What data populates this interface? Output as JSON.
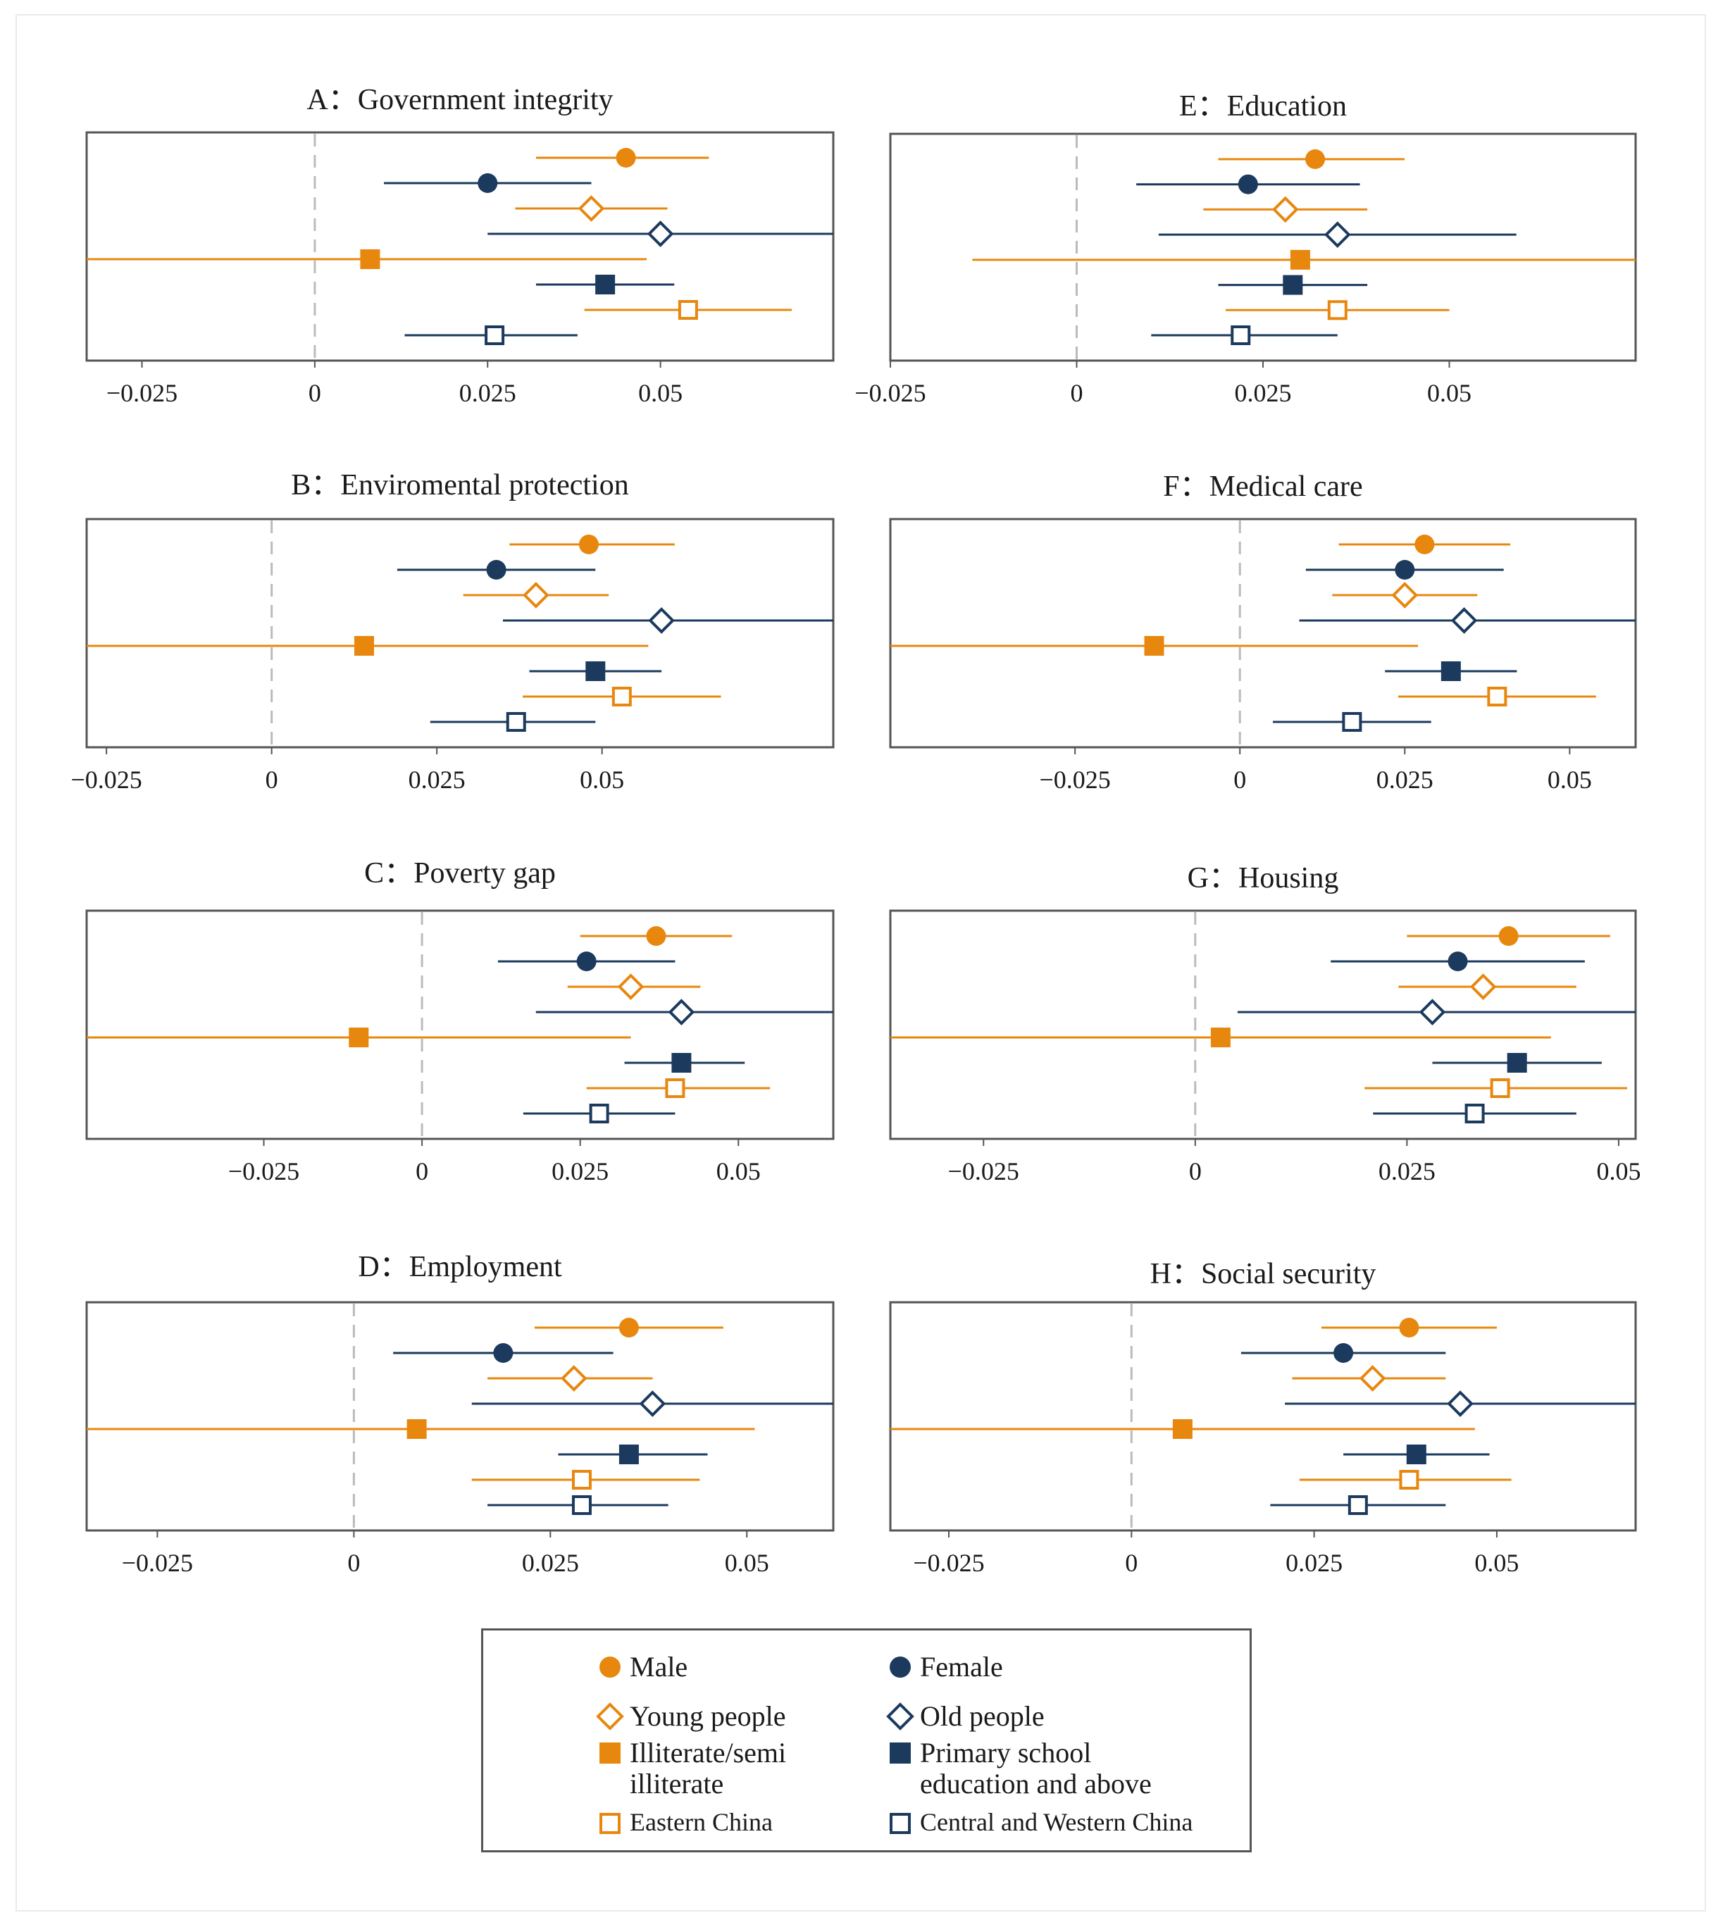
{
  "colors": {
    "orange": "#E8870E",
    "navy": "#1B3A5E",
    "gray": "#BBBBBB",
    "frame": "#555555"
  },
  "legend": {
    "items": [
      {
        "label": "Male",
        "marker": "circle-filled",
        "color": "#E8870E"
      },
      {
        "label": "Female",
        "marker": "circle-filled",
        "color": "#1B3A5E"
      },
      {
        "label": "Young people",
        "marker": "diamond-hollow",
        "color": "#E8870E"
      },
      {
        "label": "Old people",
        "marker": "diamond-hollow",
        "color": "#1B3A5E"
      },
      {
        "label": "Illiterate/semi\nilliterate",
        "marker": "square-filled",
        "color": "#E8870E"
      },
      {
        "label": "Primary school\neducation and above",
        "marker": "square-filled",
        "color": "#1B3A5E"
      },
      {
        "label": "Eastern China",
        "marker": "square-hollow",
        "color": "#E8870E"
      },
      {
        "label": "Central and Western China",
        "marker": "square-hollow",
        "color": "#1B3A5E"
      }
    ]
  },
  "chart_data": [
    {
      "type": "coefficient-plot",
      "title": "A：Government integrity",
      "xlim": [
        -0.033,
        0.075
      ],
      "ticks": [
        -0.025,
        0,
        0.025,
        0.05
      ],
      "tick_labels": [
        "−0.025",
        "0",
        "0.025",
        "0.05"
      ],
      "series": [
        {
          "name": "Male",
          "estimate": 0.045,
          "ci": [
            0.032,
            0.057
          ]
        },
        {
          "name": "Female",
          "estimate": 0.025,
          "ci": [
            0.01,
            0.04
          ]
        },
        {
          "name": "Young people",
          "estimate": 0.04,
          "ci": [
            0.029,
            0.051
          ]
        },
        {
          "name": "Old people",
          "estimate": 0.05,
          "ci": [
            0.025,
            0.075
          ]
        },
        {
          "name": "Illiterate/semi illiterate",
          "estimate": 0.008,
          "ci": [
            -0.033,
            0.048
          ]
        },
        {
          "name": "Primary school education and above",
          "estimate": 0.042,
          "ci": [
            0.032,
            0.052
          ]
        },
        {
          "name": "Eastern China",
          "estimate": 0.054,
          "ci": [
            0.039,
            0.069
          ]
        },
        {
          "name": "Central and Western China",
          "estimate": 0.026,
          "ci": [
            0.013,
            0.038
          ]
        }
      ]
    },
    {
      "type": "coefficient-plot",
      "title": "B：Enviromental protection",
      "xlim": [
        -0.028,
        0.085
      ],
      "ticks": [
        -0.025,
        0,
        0.025,
        0.05
      ],
      "tick_labels": [
        "−0.025",
        "0",
        "0.025",
        "0.05"
      ],
      "series": [
        {
          "name": "Male",
          "estimate": 0.048,
          "ci": [
            0.036,
            0.061
          ]
        },
        {
          "name": "Female",
          "estimate": 0.034,
          "ci": [
            0.019,
            0.049
          ]
        },
        {
          "name": "Young people",
          "estimate": 0.04,
          "ci": [
            0.029,
            0.051
          ]
        },
        {
          "name": "Old people",
          "estimate": 0.059,
          "ci": [
            0.035,
            0.085
          ]
        },
        {
          "name": "Illiterate/semi illiterate",
          "estimate": 0.014,
          "ci": [
            -0.028,
            0.057
          ]
        },
        {
          "name": "Primary school education and above",
          "estimate": 0.049,
          "ci": [
            0.039,
            0.059
          ]
        },
        {
          "name": "Eastern China",
          "estimate": 0.053,
          "ci": [
            0.038,
            0.068
          ]
        },
        {
          "name": "Central and Western China",
          "estimate": 0.037,
          "ci": [
            0.024,
            0.049
          ]
        }
      ]
    },
    {
      "type": "coefficient-plot",
      "title": "C：Poverty gap",
      "xlim": [
        -0.053,
        0.065
      ],
      "ticks": [
        -0.025,
        0,
        0.025,
        0.05
      ],
      "tick_labels": [
        "−0.025",
        "0",
        "0.025",
        "0.05"
      ],
      "series": [
        {
          "name": "Male",
          "estimate": 0.037,
          "ci": [
            0.025,
            0.049
          ]
        },
        {
          "name": "Female",
          "estimate": 0.026,
          "ci": [
            0.012,
            0.04
          ]
        },
        {
          "name": "Young people",
          "estimate": 0.033,
          "ci": [
            0.023,
            0.044
          ]
        },
        {
          "name": "Old people",
          "estimate": 0.041,
          "ci": [
            0.018,
            0.065
          ]
        },
        {
          "name": "Illiterate/semi illiterate",
          "estimate": -0.01,
          "ci": [
            -0.053,
            0.033
          ]
        },
        {
          "name": "Primary school education and above",
          "estimate": 0.041,
          "ci": [
            0.032,
            0.051
          ]
        },
        {
          "name": "Eastern China",
          "estimate": 0.04,
          "ci": [
            0.026,
            0.055
          ]
        },
        {
          "name": "Central and Western China",
          "estimate": 0.028,
          "ci": [
            0.016,
            0.04
          ]
        }
      ]
    },
    {
      "type": "coefficient-plot",
      "title": "D：Employment",
      "xlim": [
        -0.034,
        0.061
      ],
      "ticks": [
        -0.025,
        0,
        0.025,
        0.05
      ],
      "tick_labels": [
        "−0.025",
        "0",
        "0.025",
        "0.05"
      ],
      "series": [
        {
          "name": "Male",
          "estimate": 0.035,
          "ci": [
            0.023,
            0.047
          ]
        },
        {
          "name": "Female",
          "estimate": 0.019,
          "ci": [
            0.005,
            0.033
          ]
        },
        {
          "name": "Young people",
          "estimate": 0.028,
          "ci": [
            0.017,
            0.038
          ]
        },
        {
          "name": "Old people",
          "estimate": 0.038,
          "ci": [
            0.015,
            0.061
          ]
        },
        {
          "name": "Illiterate/semi illiterate",
          "estimate": 0.008,
          "ci": [
            -0.034,
            0.051
          ]
        },
        {
          "name": "Primary school education and above",
          "estimate": 0.035,
          "ci": [
            0.026,
            0.045
          ]
        },
        {
          "name": "Eastern China",
          "estimate": 0.029,
          "ci": [
            0.015,
            0.044
          ]
        },
        {
          "name": "Central and Western China",
          "estimate": 0.029,
          "ci": [
            0.017,
            0.04
          ]
        }
      ]
    },
    {
      "type": "coefficient-plot",
      "title": "E：Education",
      "xlim": [
        -0.025,
        0.075
      ],
      "ticks": [
        -0.025,
        0,
        0.025,
        0.05
      ],
      "tick_labels": [
        "−0.025",
        "0",
        "0.025",
        "0.05"
      ],
      "series": [
        {
          "name": "Male",
          "estimate": 0.032,
          "ci": [
            0.019,
            0.044
          ]
        },
        {
          "name": "Female",
          "estimate": 0.023,
          "ci": [
            0.008,
            0.038
          ]
        },
        {
          "name": "Young people",
          "estimate": 0.028,
          "ci": [
            0.017,
            0.039
          ]
        },
        {
          "name": "Old people",
          "estimate": 0.035,
          "ci": [
            0.011,
            0.059
          ]
        },
        {
          "name": "Illiterate/semi illiterate",
          "estimate": 0.03,
          "ci": [
            -0.014,
            0.075
          ]
        },
        {
          "name": "Primary school education and above",
          "estimate": 0.029,
          "ci": [
            0.019,
            0.039
          ]
        },
        {
          "name": "Eastern China",
          "estimate": 0.035,
          "ci": [
            0.02,
            0.05
          ]
        },
        {
          "name": "Central and Western China",
          "estimate": 0.022,
          "ci": [
            0.01,
            0.035
          ]
        }
      ]
    },
    {
      "type": "coefficient-plot",
      "title": "F：Medical care",
      "xlim": [
        -0.053,
        0.06
      ],
      "ticks": [
        -0.025,
        0,
        0.025,
        0.05
      ],
      "tick_labels": [
        "−0.025",
        "0",
        "0.025",
        "0.05"
      ],
      "series": [
        {
          "name": "Male",
          "estimate": 0.028,
          "ci": [
            0.015,
            0.041
          ]
        },
        {
          "name": "Female",
          "estimate": 0.025,
          "ci": [
            0.01,
            0.04
          ]
        },
        {
          "name": "Young people",
          "estimate": 0.025,
          "ci": [
            0.014,
            0.036
          ]
        },
        {
          "name": "Old people",
          "estimate": 0.034,
          "ci": [
            0.009,
            0.06
          ]
        },
        {
          "name": "Illiterate/semi illiterate",
          "estimate": -0.013,
          "ci": [
            -0.053,
            0.027
          ]
        },
        {
          "name": "Primary school education and above",
          "estimate": 0.032,
          "ci": [
            0.022,
            0.042
          ]
        },
        {
          "name": "Eastern China",
          "estimate": 0.039,
          "ci": [
            0.024,
            0.054
          ]
        },
        {
          "name": "Central and Western China",
          "estimate": 0.017,
          "ci": [
            0.005,
            0.029
          ]
        }
      ]
    },
    {
      "type": "coefficient-plot",
      "title": "G：Housing",
      "xlim": [
        -0.036,
        0.052
      ],
      "ticks": [
        -0.025,
        0,
        0.025,
        0.05
      ],
      "tick_labels": [
        "−0.025",
        "0",
        "0.025",
        "0.05"
      ],
      "series": [
        {
          "name": "Male",
          "estimate": 0.037,
          "ci": [
            0.025,
            0.049
          ]
        },
        {
          "name": "Female",
          "estimate": 0.031,
          "ci": [
            0.016,
            0.046
          ]
        },
        {
          "name": "Young people",
          "estimate": 0.034,
          "ci": [
            0.024,
            0.045
          ]
        },
        {
          "name": "Old people",
          "estimate": 0.028,
          "ci": [
            0.005,
            0.052
          ]
        },
        {
          "name": "Illiterate/semi illiterate",
          "estimate": 0.003,
          "ci": [
            -0.036,
            0.042
          ]
        },
        {
          "name": "Primary school education and above",
          "estimate": 0.038,
          "ci": [
            0.028,
            0.048
          ]
        },
        {
          "name": "Eastern China",
          "estimate": 0.036,
          "ci": [
            0.02,
            0.051
          ]
        },
        {
          "name": "Central and Western China",
          "estimate": 0.033,
          "ci": [
            0.021,
            0.045
          ]
        }
      ]
    },
    {
      "type": "coefficient-plot",
      "title": "H：Social security",
      "xlim": [
        -0.033,
        0.069
      ],
      "ticks": [
        -0.025,
        0,
        0.025,
        0.05
      ],
      "tick_labels": [
        "−0.025",
        "0",
        "0.025",
        "0.05"
      ],
      "series": [
        {
          "name": "Male",
          "estimate": 0.038,
          "ci": [
            0.026,
            0.05
          ]
        },
        {
          "name": "Female",
          "estimate": 0.029,
          "ci": [
            0.015,
            0.043
          ]
        },
        {
          "name": "Young people",
          "estimate": 0.033,
          "ci": [
            0.022,
            0.043
          ]
        },
        {
          "name": "Old people",
          "estimate": 0.045,
          "ci": [
            0.021,
            0.069
          ]
        },
        {
          "name": "Illiterate/semi illiterate",
          "estimate": 0.007,
          "ci": [
            -0.033,
            0.047
          ]
        },
        {
          "name": "Primary school education and above",
          "estimate": 0.039,
          "ci": [
            0.029,
            0.049
          ]
        },
        {
          "name": "Eastern China",
          "estimate": 0.038,
          "ci": [
            0.023,
            0.052
          ]
        },
        {
          "name": "Central and Western China",
          "estimate": 0.031,
          "ci": [
            0.019,
            0.043
          ]
        }
      ]
    }
  ]
}
